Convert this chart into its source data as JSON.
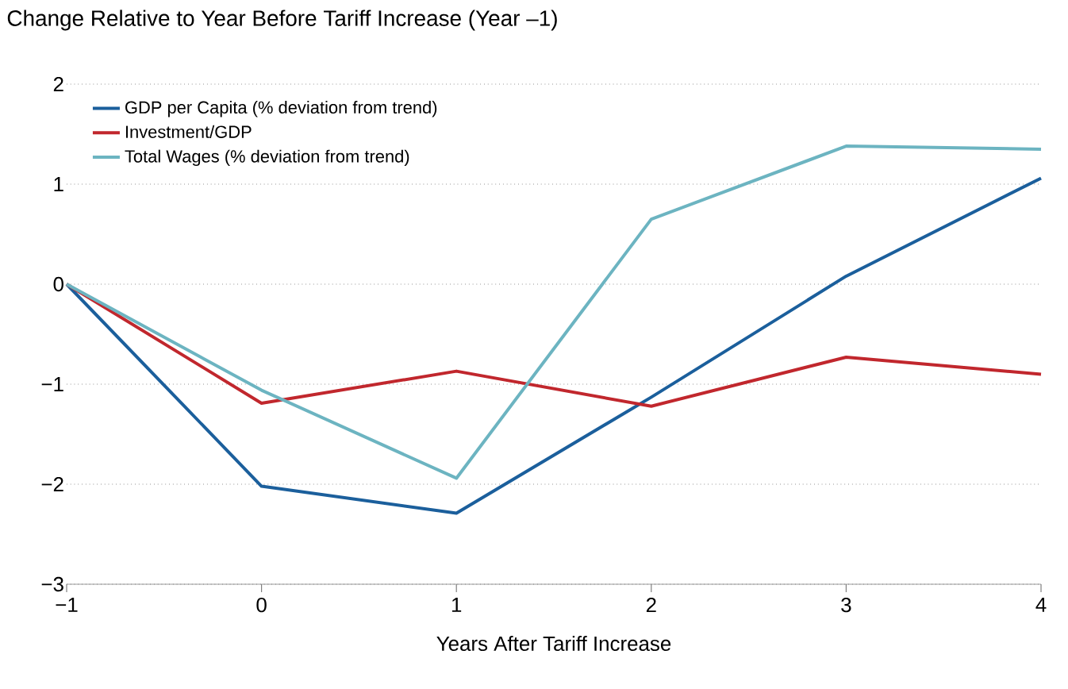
{
  "chart_data": {
    "type": "line",
    "title": "Change Relative to Year Before Tariff Increase (Year –1)",
    "xlabel": "Years After Tariff Increase",
    "x": [
      -1,
      0,
      1,
      2,
      3,
      4
    ],
    "series": [
      {
        "name": "GDP per Capita (% deviation from trend)",
        "color": "#1b5f9c",
        "values": [
          0,
          -2.02,
          -2.29,
          -1.13,
          0.08,
          1.06
        ]
      },
      {
        "name": "Investment/GDP",
        "color": "#c1272d",
        "values": [
          0,
          -1.19,
          -0.87,
          -1.22,
          -0.73,
          -0.9
        ]
      },
      {
        "name": "Total Wages (% deviation from trend)",
        "color": "#6cb4c1",
        "values": [
          0,
          -1.06,
          -1.94,
          0.65,
          1.38,
          1.35
        ]
      }
    ],
    "xlim": [
      -1,
      4
    ],
    "ylim": [
      -3,
      2
    ],
    "xticks": [
      {
        "value": -1,
        "label": "−1"
      },
      0,
      1,
      2,
      3,
      4
    ],
    "yticks": [
      {
        "value": -3,
        "label": "−3"
      },
      {
        "value": -2,
        "label": "−2"
      },
      {
        "value": -1,
        "label": "−1"
      },
      0,
      1,
      2
    ],
    "grid": "y",
    "legend": "top left",
    "marker": "none",
    "line_style": "solid"
  }
}
